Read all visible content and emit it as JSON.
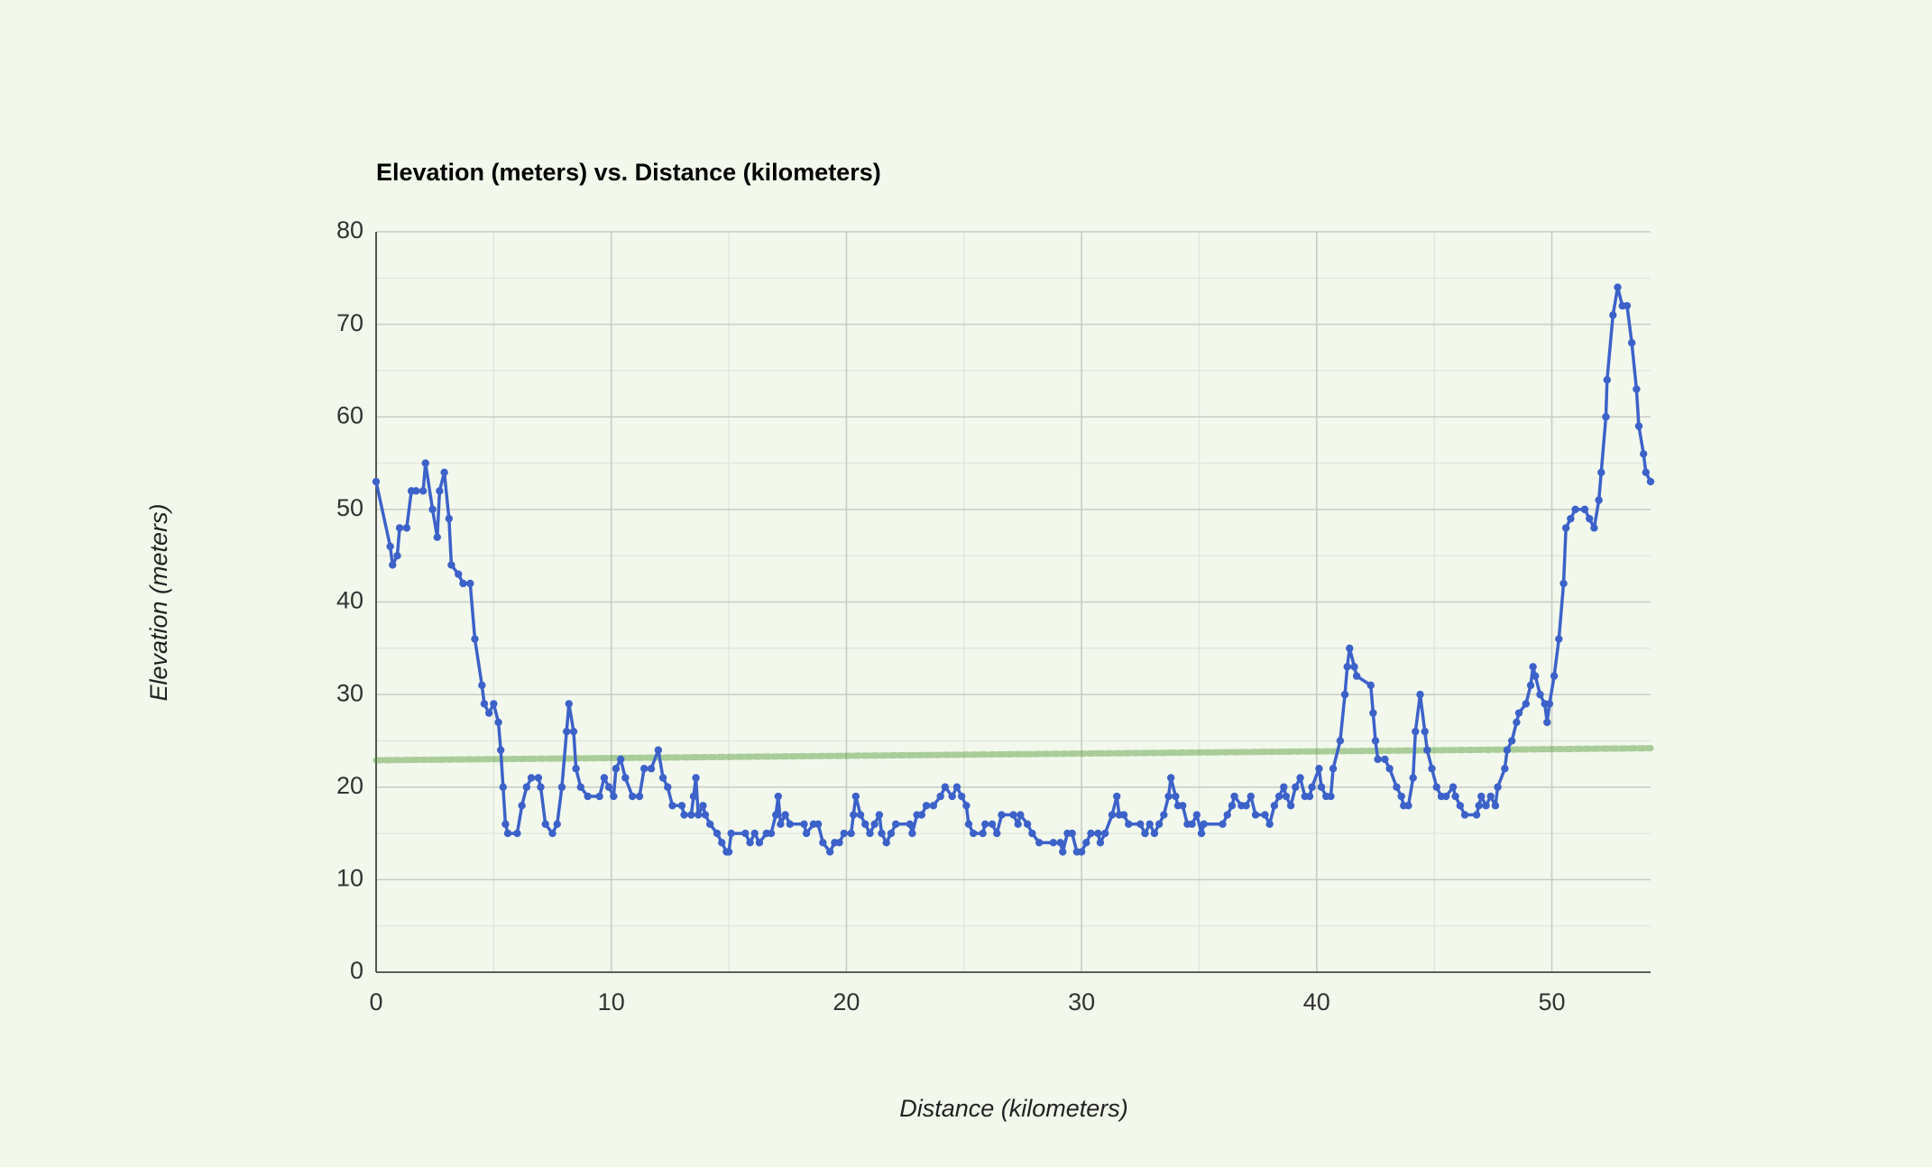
{
  "chart_data": {
    "type": "line",
    "title": "Elevation (meters) vs. Distance (kilometers)",
    "x_label": "Distance (kilometers)",
    "y_label": "Elevation (meters)",
    "xlim": [
      0,
      54.2
    ],
    "xticks": [
      0,
      10,
      20,
      30,
      40,
      50
    ],
    "ylim": [
      0,
      80
    ],
    "yticks": [
      0,
      10,
      20,
      30,
      40,
      50,
      60,
      70,
      80
    ],
    "grid": true,
    "minor_grid": true,
    "series": [
      {
        "color": "#3c62c9",
        "x": [
          0,
          0.6,
          0.7,
          0.9,
          1.0,
          1.3,
          1.5,
          1.7,
          2.0,
          2.1,
          2.4,
          2.6,
          2.7,
          2.9,
          3.1,
          3.2,
          3.5,
          3.7,
          4.0,
          4.2,
          4.5,
          4.6,
          4.8,
          5.0,
          5.2,
          5.3,
          5.4,
          5.5,
          5.6,
          6.0,
          6.2,
          6.4,
          6.6,
          6.9,
          7.0,
          7.2,
          7.5,
          7.7,
          7.9,
          8.1,
          8.2,
          8.4,
          8.5,
          8.7,
          9.0,
          9.5,
          9.7,
          9.9,
          10.1,
          10.2,
          10.4,
          10.6,
          10.9,
          11.2,
          11.4,
          11.7,
          12.0,
          12.2,
          12.4,
          12.6,
          13.0,
          13.1,
          13.4,
          13.5,
          13.6,
          13.7,
          13.9,
          14.0,
          14.2,
          14.5,
          14.7,
          14.9,
          15.0,
          15.1,
          15.7,
          15.9,
          16.1,
          16.3,
          16.6,
          16.8,
          17.0,
          17.1,
          17.2,
          17.4,
          17.6,
          18.2,
          18.3,
          18.6,
          18.8,
          19.0,
          19.3,
          19.5,
          19.7,
          19.9,
          20.2,
          20.3,
          20.4,
          20.6,
          20.8,
          21.0,
          21.2,
          21.4,
          21.5,
          21.7,
          21.9,
          22.1,
          22.7,
          22.8,
          23.0,
          23.2,
          23.4,
          23.7,
          24.0,
          24.2,
          24.5,
          24.7,
          24.9,
          25.1,
          25.2,
          25.4,
          25.8,
          25.9,
          26.2,
          26.4,
          26.6,
          27.1,
          27.3,
          27.4,
          27.7,
          27.9,
          28.2,
          28.8,
          29.1,
          29.2,
          29.4,
          29.6,
          29.8,
          30.0,
          30.2,
          30.4,
          30.7,
          30.8,
          31.0,
          31.3,
          31.5,
          31.6,
          31.8,
          32.0,
          32.5,
          32.7,
          32.9,
          33.1,
          33.3,
          33.5,
          33.7,
          33.8,
          34.0,
          34.1,
          34.3,
          34.5,
          34.7,
          34.9,
          35.1,
          35.2,
          36.0,
          36.2,
          36.4,
          36.5,
          36.8,
          37.0,
          37.2,
          37.4,
          37.8,
          38.0,
          38.2,
          38.4,
          38.6,
          38.7,
          38.9,
          39.1,
          39.3,
          39.5,
          39.7,
          39.8,
          40.1,
          40.2,
          40.4,
          40.6,
          40.7,
          41.0,
          41.2,
          41.3,
          41.4,
          41.6,
          41.7,
          42.3,
          42.4,
          42.5,
          42.6,
          42.9,
          43.1,
          43.4,
          43.6,
          43.7,
          43.9,
          44.1,
          44.2,
          44.4,
          44.6,
          44.7,
          44.9,
          45.1,
          45.3,
          45.5,
          45.8,
          45.9,
          46.1,
          46.3,
          46.8,
          46.9,
          47.0,
          47.2,
          47.4,
          47.6,
          47.7,
          48.0,
          48.1,
          48.3,
          48.5,
          48.6,
          48.9,
          49.1,
          49.2,
          49.3,
          49.5,
          49.7,
          49.8,
          49.9,
          50.1,
          50.3,
          50.5,
          50.6,
          50.8,
          51.0,
          51.4,
          51.6,
          51.8,
          52.0,
          52.1,
          52.3,
          52.35,
          52.6,
          52.8,
          53.0,
          53.2,
          53.4,
          53.6,
          53.7,
          53.9,
          54.0,
          54.2
        ],
        "values": [
          53,
          46,
          44,
          45,
          48,
          48,
          52,
          52,
          52,
          55,
          50,
          47,
          52,
          54,
          49,
          44,
          43,
          42,
          42,
          36,
          31,
          29,
          28,
          29,
          27,
          24,
          20,
          16,
          15,
          15,
          18,
          20,
          21,
          21,
          20,
          16,
          15,
          16,
          20,
          26,
          29,
          26,
          22,
          20,
          19,
          19,
          21,
          20,
          19,
          22,
          23,
          21,
          19,
          19,
          22,
          22,
          24,
          21,
          20,
          18,
          18,
          17,
          17,
          19,
          21,
          17,
          18,
          17,
          16,
          15,
          14,
          13,
          13,
          15,
          15,
          14,
          15,
          14,
          15,
          15,
          17,
          19,
          16,
          17,
          16,
          16,
          15,
          16,
          16,
          14,
          13,
          14,
          14,
          15,
          15,
          17,
          19,
          17,
          16,
          15,
          16,
          17,
          15,
          14,
          15,
          16,
          16,
          15,
          17,
          17,
          18,
          18,
          19,
          20,
          19,
          20,
          19,
          18,
          16,
          15,
          15,
          16,
          16,
          15,
          17,
          17,
          16,
          17,
          16,
          15,
          14,
          14,
          14,
          13,
          15,
          15,
          13,
          13,
          14,
          15,
          15,
          14,
          15,
          17,
          19,
          17,
          17,
          16,
          16,
          15,
          16,
          15,
          16,
          17,
          19,
          21,
          19,
          18,
          18,
          16,
          16,
          17,
          15,
          16,
          16,
          17,
          18,
          19,
          18,
          18,
          19,
          17,
          17,
          16,
          18,
          19,
          20,
          19,
          18,
          20,
          21,
          19,
          19,
          20,
          22,
          20,
          19,
          19,
          22,
          25,
          30,
          33,
          35,
          33,
          32,
          31,
          28,
          25,
          23,
          23,
          22,
          20,
          19,
          18,
          18,
          21,
          26,
          30,
          26,
          24,
          22,
          20,
          19,
          19,
          20,
          19,
          18,
          17,
          17,
          18,
          19,
          18,
          19,
          18,
          20,
          22,
          24,
          25,
          27,
          28,
          29,
          31,
          33,
          32,
          30,
          29,
          27,
          29,
          32,
          36,
          42,
          48,
          49,
          50,
          50,
          49,
          48,
          51,
          54,
          60,
          64,
          71,
          74,
          72,
          72,
          68,
          63,
          59,
          56,
          54,
          53
        ]
      }
    ],
    "trendline": {
      "x": [
        0,
        54.2
      ],
      "values": [
        22.9,
        24.2
      ],
      "color": "#4f9a33"
    }
  }
}
